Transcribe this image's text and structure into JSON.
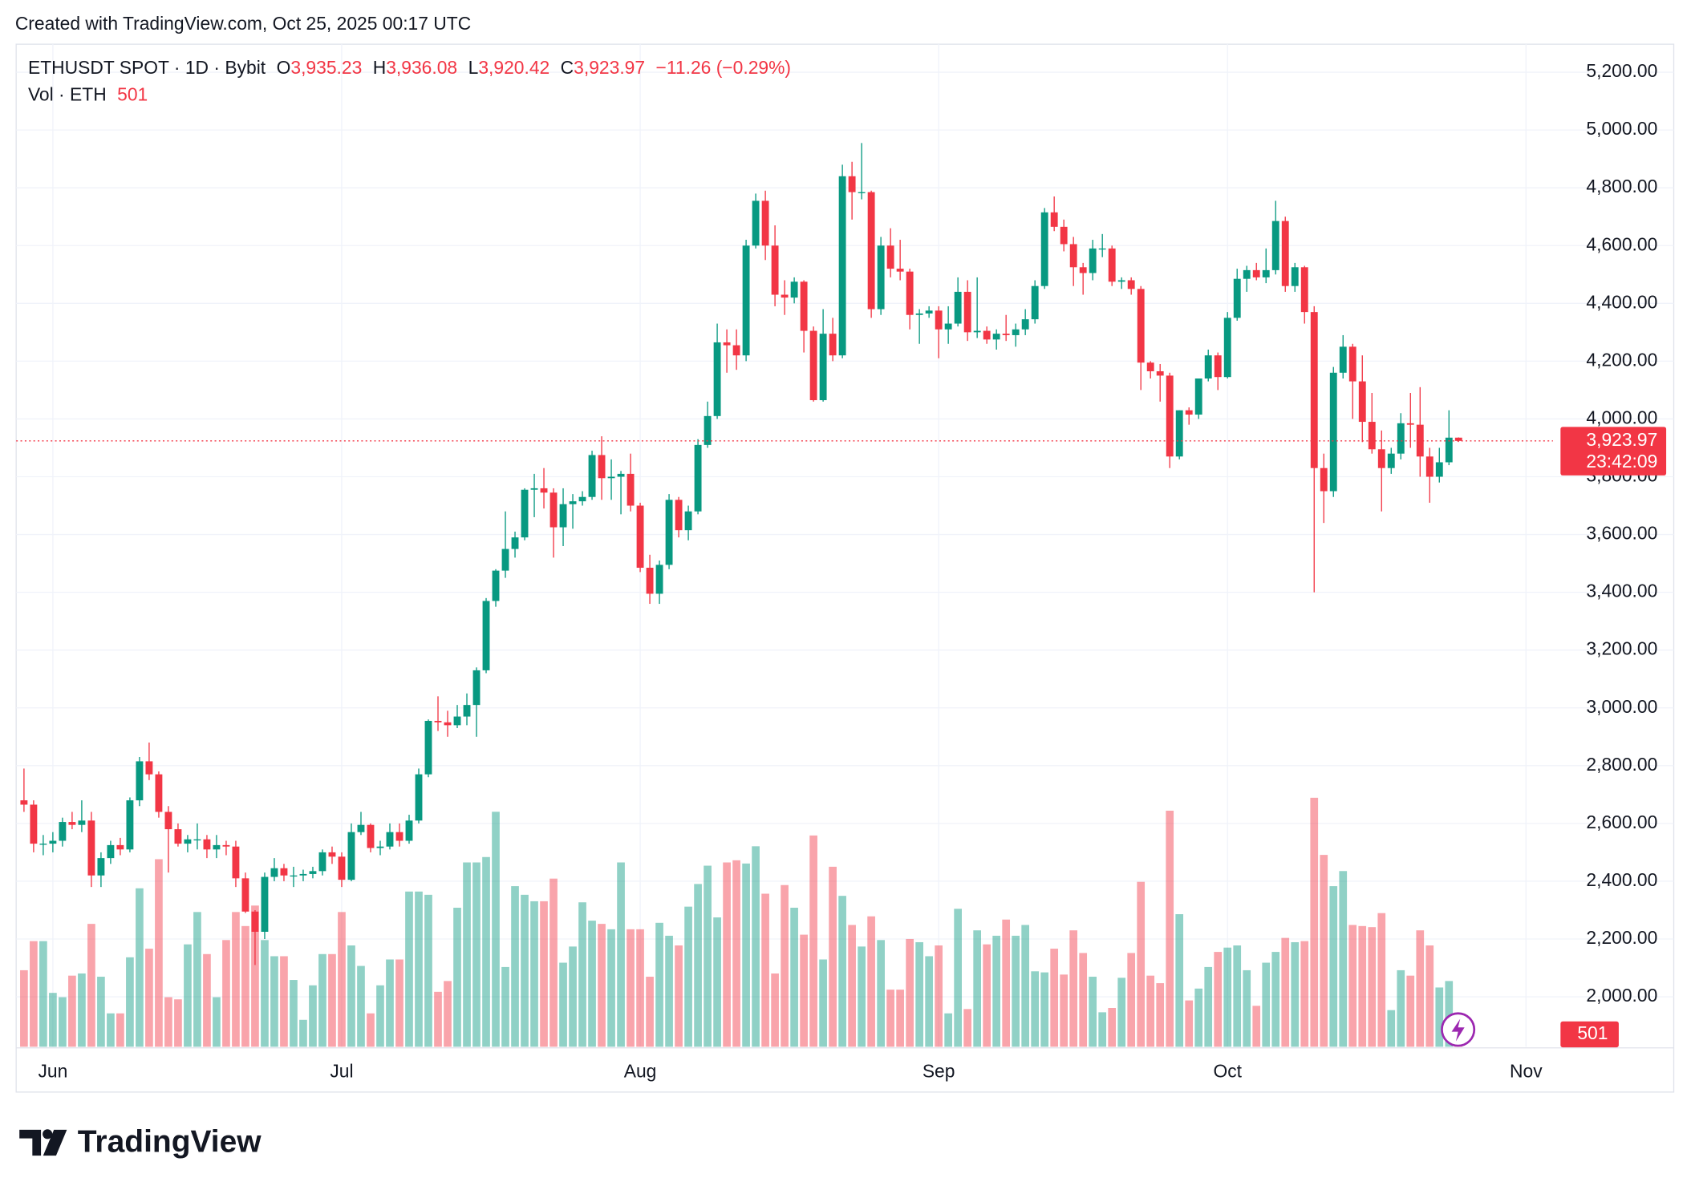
{
  "header": {
    "text": "Created with TradingView.com, Oct 25, 2025 00:17 UTC"
  },
  "chart_data": {
    "type": "candlestick",
    "legend": {
      "symbol": "ETHUSDT SPOT · 1D · Bybit",
      "open_label": "O",
      "open": "3,935.23",
      "high_label": "H",
      "high": "3,936.08",
      "low_label": "L",
      "low": "3,920.42",
      "close_label": "C",
      "close": "3,923.97",
      "change": "−11.26 (−0.29%)",
      "volume_label": "Vol · ETH",
      "volume": "501"
    },
    "last_price_label": "3,923.97",
    "countdown": "23:42:09",
    "last_volume_label": "501",
    "up_color": "#089981",
    "down_color": "#f23645",
    "grid": true,
    "xlim": [
      -0.81,
      158.8
    ],
    "xticks": [
      {
        "value": 3,
        "label": "Jun"
      },
      {
        "value": 33,
        "label": "Jul"
      },
      {
        "value": 64,
        "label": "Aug"
      },
      {
        "value": 95,
        "label": "Sep"
      },
      {
        "value": 125,
        "label": "Oct"
      },
      {
        "value": 156,
        "label": "Nov"
      }
    ],
    "ylim": [
      1827,
      5297
    ],
    "yticks": [
      {
        "value": 2000,
        "label": "2,000.00"
      },
      {
        "value": 2200,
        "label": "2,200.00"
      },
      {
        "value": 2400,
        "label": "2,400.00"
      },
      {
        "value": 2600,
        "label": "2,600.00"
      },
      {
        "value": 2800,
        "label": "2,800.00"
      },
      {
        "value": 3000,
        "label": "3,000.00"
      },
      {
        "value": 3200,
        "label": "3,200.00"
      },
      {
        "value": 3400,
        "label": "3,400.00"
      },
      {
        "value": 3600,
        "label": "3,600.00"
      },
      {
        "value": 3800,
        "label": "3,800.00"
      },
      {
        "value": 4000,
        "label": "4,000.00"
      },
      {
        "value": 4200,
        "label": "4,200.00"
      },
      {
        "value": 4400,
        "label": "4,400.00"
      },
      {
        "value": 4600,
        "label": "4,600.00"
      },
      {
        "value": 4800,
        "label": "4,800.00"
      },
      {
        "value": 5000,
        "label": "5,000.00"
      },
      {
        "value": 5200,
        "label": "5,200.00"
      }
    ],
    "open": [
      2680,
      2665,
      2530,
      2530,
      2540,
      2605,
      2595,
      2610,
      2420,
      2480,
      2525,
      2510,
      2680,
      2815,
      2770,
      2640,
      2580,
      2530,
      2545,
      2545,
      2510,
      2525,
      2520,
      2410,
      2295,
      2225,
      2415,
      2445,
      2420,
      2420,
      2425,
      2435,
      2500,
      2485,
      2405,
      2570,
      2595,
      2515,
      2520,
      2570,
      2540,
      2610,
      2770,
      2955,
      2950,
      2940,
      2970,
      3010,
      3130,
      3370,
      3475,
      3550,
      3590,
      3755,
      3760,
      3745,
      3625,
      3705,
      3715,
      3730,
      3875,
      3795,
      3800,
      3810,
      3700,
      3485,
      3395,
      3495,
      3720,
      3615,
      3680,
      3910,
      4010,
      4265,
      4255,
      4220,
      4600,
      4755,
      4600,
      4430,
      4420,
      4475,
      4305,
      4065,
      4295,
      4220,
      4840,
      4785,
      4785,
      4380,
      4600,
      4520,
      4510,
      4360,
      4365,
      4375,
      4310,
      4330,
      4440,
      4300,
      4305,
      4275,
      4295,
      4290,
      4310,
      4345,
      4460,
      4715,
      4665,
      4605,
      4525,
      4505,
      4590,
      4590,
      4475,
      4480,
      4450,
      4195,
      4165,
      4150,
      3870,
      4030,
      4015,
      4140,
      4220,
      4145,
      4350,
      4485,
      4515,
      4490,
      4515,
      4685,
      4460,
      4525,
      4370,
      3830,
      3750,
      4160,
      4250,
      4130,
      3990,
      3895,
      3830,
      3880,
      3985,
      3980,
      3870,
      3800,
      3850,
      3935.23
    ],
    "high": [
      2790,
      2680,
      2560,
      2570,
      2620,
      2640,
      2680,
      2640,
      2500,
      2540,
      2550,
      2690,
      2830,
      2880,
      2780,
      2660,
      2600,
      2560,
      2600,
      2560,
      2560,
      2540,
      2540,
      2430,
      2300,
      2430,
      2480,
      2460,
      2450,
      2440,
      2450,
      2510,
      2520,
      2500,
      2600,
      2640,
      2600,
      2540,
      2600,
      2600,
      2630,
      2790,
      2960,
      3040,
      2990,
      3010,
      3050,
      3140,
      3380,
      3480,
      3680,
      3610,
      3760,
      3810,
      3830,
      3760,
      3760,
      3740,
      3750,
      3890,
      3940,
      3860,
      3820,
      3880,
      3710,
      3530,
      3510,
      3740,
      3730,
      3700,
      3930,
      4060,
      4330,
      4310,
      4310,
      4620,
      4780,
      4790,
      4670,
      4480,
      4490,
      4480,
      4320,
      4380,
      4350,
      4880,
      4890,
      4955,
      4790,
      4630,
      4660,
      4620,
      4520,
      4380,
      4390,
      4390,
      4390,
      4490,
      4480,
      4490,
      4320,
      4310,
      4360,
      4330,
      4380,
      4480,
      4730,
      4770,
      4690,
      4630,
      4540,
      4620,
      4640,
      4600,
      4490,
      4490,
      4460,
      4200,
      4190,
      4160,
      4030,
      4040,
      4140,
      4240,
      4230,
      4370,
      4520,
      4530,
      4540,
      4590,
      4755,
      4700,
      4540,
      4530,
      4390,
      3880,
      4180,
      4290,
      4260,
      4220,
      4090,
      3960,
      3900,
      4020,
      4090,
      4110,
      3900,
      3900,
      4030,
      3936.08
    ],
    "low": [
      2640,
      2500,
      2490,
      2500,
      2520,
      2580,
      2570,
      2380,
      2380,
      2460,
      2490,
      2500,
      2660,
      2750,
      2620,
      2430,
      2520,
      2500,
      2510,
      2480,
      2480,
      2490,
      2380,
      2290,
      2110,
      2200,
      2400,
      2400,
      2380,
      2400,
      2410,
      2420,
      2460,
      2380,
      2400,
      2560,
      2500,
      2490,
      2510,
      2520,
      2530,
      2600,
      2760,
      2920,
      2900,
      2930,
      2940,
      2900,
      3120,
      3350,
      3450,
      3520,
      3580,
      3660,
      3690,
      3520,
      3560,
      3620,
      3700,
      3720,
      3720,
      3720,
      3670,
      3680,
      3470,
      3360,
      3360,
      3480,
      3590,
      3580,
      3670,
      3900,
      4000,
      4160,
      4170,
      4200,
      4590,
      4550,
      4390,
      4360,
      4400,
      4230,
      4060,
      4060,
      4200,
      4210,
      4690,
      4760,
      4350,
      4360,
      4490,
      4480,
      4310,
      4260,
      4350,
      4210,
      4260,
      4320,
      4270,
      4280,
      4260,
      4240,
      4270,
      4250,
      4290,
      4330,
      4450,
      4650,
      4580,
      4460,
      4430,
      4480,
      4560,
      4460,
      4450,
      4430,
      4100,
      4140,
      4060,
      3830,
      3860,
      3980,
      4000,
      4130,
      4100,
      4140,
      4340,
      4440,
      4480,
      4470,
      4500,
      4440,
      4440,
      4330,
      3400,
      3640,
      3730,
      4140,
      4000,
      3920,
      3880,
      3680,
      3810,
      3860,
      3900,
      3800,
      3710,
      3780,
      3840,
      3920.42
    ],
    "close": [
      2665,
      2530,
      2530,
      2540,
      2605,
      2595,
      2610,
      2420,
      2480,
      2525,
      2510,
      2680,
      2815,
      2770,
      2640,
      2580,
      2530,
      2545,
      2545,
      2510,
      2525,
      2520,
      2410,
      2295,
      2225,
      2415,
      2445,
      2420,
      2420,
      2425,
      2435,
      2500,
      2485,
      2405,
      2570,
      2595,
      2515,
      2520,
      2570,
      2540,
      2610,
      2770,
      2955,
      2950,
      2940,
      2970,
      3010,
      3130,
      3370,
      3475,
      3550,
      3590,
      3755,
      3760,
      3745,
      3625,
      3705,
      3715,
      3730,
      3875,
      3795,
      3800,
      3810,
      3700,
      3485,
      3395,
      3495,
      3720,
      3615,
      3680,
      3910,
      4010,
      4265,
      4255,
      4220,
      4600,
      4755,
      4600,
      4430,
      4420,
      4475,
      4305,
      4065,
      4295,
      4220,
      4840,
      4785,
      4785,
      4380,
      4600,
      4520,
      4510,
      4360,
      4365,
      4375,
      4310,
      4330,
      4440,
      4300,
      4305,
      4275,
      4295,
      4290,
      4310,
      4345,
      4460,
      4715,
      4665,
      4605,
      4525,
      4505,
      4590,
      4590,
      4475,
      4480,
      4450,
      4195,
      4165,
      4150,
      3870,
      4030,
      4015,
      4140,
      4220,
      4145,
      4350,
      4485,
      4515,
      4490,
      4515,
      4685,
      4460,
      4525,
      4370,
      3830,
      3750,
      4160,
      4250,
      4130,
      3990,
      3895,
      3830,
      3880,
      3985,
      3980,
      3870,
      3800,
      3850,
      3935.23,
      3923.97
    ],
    "volume": [
      71000,
      98000,
      98000,
      50000,
      46000,
      66000,
      68000,
      114000,
      65000,
      31000,
      31000,
      83000,
      147000,
      91000,
      174000,
      46000,
      44000,
      95000,
      125000,
      86000,
      46000,
      99000,
      125000,
      112000,
      131000,
      99000,
      84000,
      84000,
      62000,
      25000,
      57000,
      86000,
      86000,
      125000,
      94000,
      75000,
      31000,
      57000,
      81000,
      81000,
      144000,
      144000,
      141000,
      51000,
      61000,
      129000,
      171000,
      171000,
      176000,
      218000,
      74000,
      149000,
      141000,
      135000,
      135000,
      156000,
      78000,
      93000,
      134000,
      117000,
      114000,
      109000,
      171000,
      109000,
      109000,
      65000,
      115000,
      103000,
      94000,
      130000,
      151000,
      168000,
      120000,
      171000,
      173000,
      170000,
      186000,
      142000,
      68000,
      150000,
      129000,
      104000,
      196000,
      81000,
      167000,
      140000,
      113000,
      93000,
      121000,
      99000,
      53000,
      53000,
      100000,
      97000,
      84000,
      94000,
      31000,
      128000,
      35000,
      108000,
      95000,
      103000,
      118000,
      103000,
      113000,
      70000,
      69000,
      91000,
      67000,
      108000,
      87000,
      65000,
      32000,
      36000,
      64000,
      87000,
      153000,
      66000,
      59000,
      219000,
      123000,
      43000,
      54000,
      74000,
      88000,
      92000,
      94000,
      71000,
      38000,
      78000,
      88000,
      101000,
      97000,
      98000,
      231000,
      178000,
      149000,
      163000,
      113000,
      112000,
      111000,
      124000,
      34000,
      71000,
      66000,
      108000,
      94000,
      55000,
      61000,
      501
    ]
  },
  "footer": {
    "brand": "TradingView"
  }
}
